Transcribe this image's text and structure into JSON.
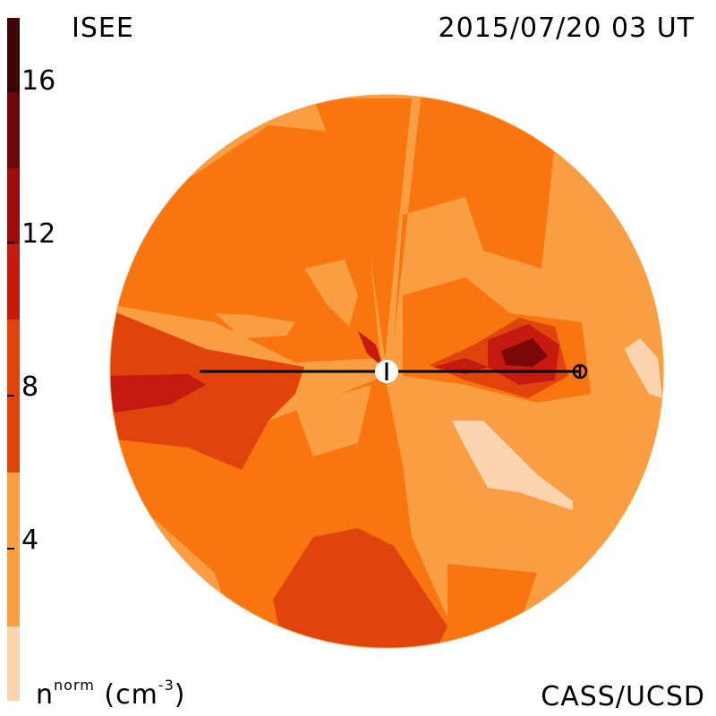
{
  "header": {
    "org": "ISEE",
    "timestamp": "2015/07/20 03 UT"
  },
  "footer": {
    "credit": "CASS/UCSD",
    "units_base": "n",
    "units_sup": "norm",
    "units_unit_open": " (cm",
    "units_unit_exp": "-3",
    "units_unit_close": ")"
  },
  "colorbar": {
    "ticks": [
      "16",
      "12",
      "8",
      "4"
    ],
    "bands": [
      "#fcd5b0",
      "#f99e42",
      "#f87510",
      "#e0430c",
      "#c41a10",
      "#9e0b0b",
      "#6d0808",
      "#3d0505",
      "#1e0202"
    ]
  },
  "map_colors": {
    "bg": "#f99e42",
    "mid": "#f87510",
    "high": "#e0430c",
    "peak": "#c41a10",
    "max": "#7a0808",
    "low": "#fcd5b0",
    "line": "#000000",
    "sun": "#ffffff"
  }
}
